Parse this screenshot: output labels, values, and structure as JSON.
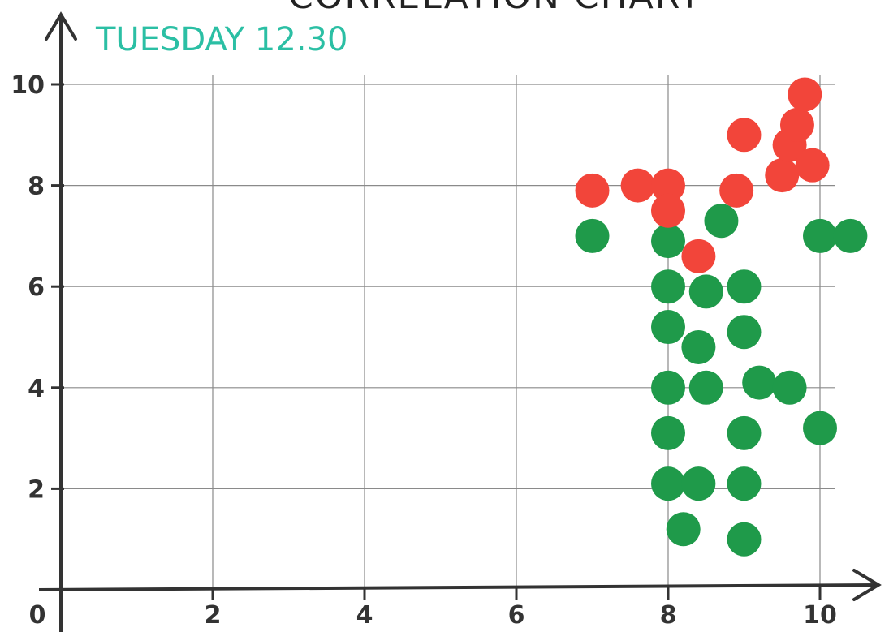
{
  "chart_data": {
    "type": "scatter",
    "title": "CORRELATION CHART",
    "subtitle": "TUESDAY 12.30",
    "xlabel": "",
    "ylabel": "",
    "xlim": [
      0,
      10.5
    ],
    "ylim": [
      0,
      10.4
    ],
    "x_ticks": [
      "0",
      "2",
      "4",
      "6",
      "8",
      "10"
    ],
    "y_ticks": [
      "2",
      "4",
      "6",
      "8",
      "10"
    ],
    "grid": true,
    "colors": {
      "red": "#f2453a",
      "green": "#1f9a4a",
      "axis": "#333333",
      "grid": "#8a8a8a"
    },
    "series": [
      {
        "color": "red",
        "points": [
          [
            7.0,
            7.9
          ],
          [
            7.6,
            8.0
          ],
          [
            8.0,
            8.0
          ],
          [
            8.0,
            7.5
          ],
          [
            8.4,
            6.6
          ],
          [
            8.9,
            7.9
          ],
          [
            9.0,
            9.0
          ],
          [
            9.5,
            8.2
          ],
          [
            9.6,
            8.8
          ],
          [
            9.7,
            9.2
          ],
          [
            9.8,
            9.8
          ],
          [
            9.9,
            8.4
          ]
        ]
      },
      {
        "color": "green",
        "points": [
          [
            7.0,
            7.0
          ],
          [
            8.0,
            6.9
          ],
          [
            8.7,
            7.3
          ],
          [
            10.0,
            7.0
          ],
          [
            10.4,
            7.0
          ],
          [
            8.0,
            6.0
          ],
          [
            8.5,
            5.9
          ],
          [
            9.0,
            6.0
          ],
          [
            8.0,
            5.2
          ],
          [
            8.4,
            4.8
          ],
          [
            9.0,
            5.1
          ],
          [
            8.0,
            4.0
          ],
          [
            8.5,
            4.0
          ],
          [
            9.2,
            4.1
          ],
          [
            9.6,
            4.0
          ],
          [
            8.0,
            3.1
          ],
          [
            9.0,
            3.1
          ],
          [
            10.0,
            3.2
          ],
          [
            8.0,
            2.1
          ],
          [
            8.4,
            2.1
          ],
          [
            9.0,
            2.1
          ],
          [
            8.2,
            1.2
          ],
          [
            9.0,
            1.0
          ]
        ]
      }
    ]
  }
}
